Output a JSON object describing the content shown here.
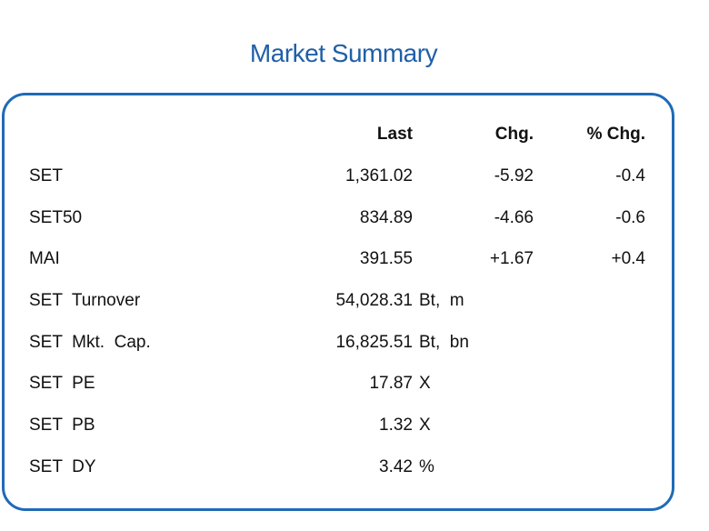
{
  "title": "Market Summary",
  "columns": {
    "last": "Last",
    "chg": "Chg.",
    "pct_chg": "% Chg."
  },
  "indices": [
    {
      "name": "SET",
      "last": "1,361.02",
      "chg": "-5.92",
      "pct_chg": "-0.4"
    },
    {
      "name": "SET50",
      "last": "834.89",
      "chg": "-4.66",
      "pct_chg": "-0.6"
    },
    {
      "name": "MAI",
      "last": "391.55",
      "chg": "+1.67",
      "pct_chg": "+0.4"
    }
  ],
  "stats": [
    {
      "name": "SET  Turnover",
      "value": "54,028.31",
      "unit": "Bt,  m"
    },
    {
      "name": "SET  Mkt.  Cap.",
      "value": "16,825.51",
      "unit": "Bt,  bn"
    },
    {
      "name": "SET  PE",
      "value": "17.87",
      "unit": "X"
    },
    {
      "name": "SET  PB",
      "value": "1.32",
      "unit": "X"
    },
    {
      "name": "SET  DY",
      "value": "3.42",
      "unit": "%"
    }
  ],
  "colors": {
    "title": "#1f5fa8",
    "border": "#1f6ab8"
  }
}
